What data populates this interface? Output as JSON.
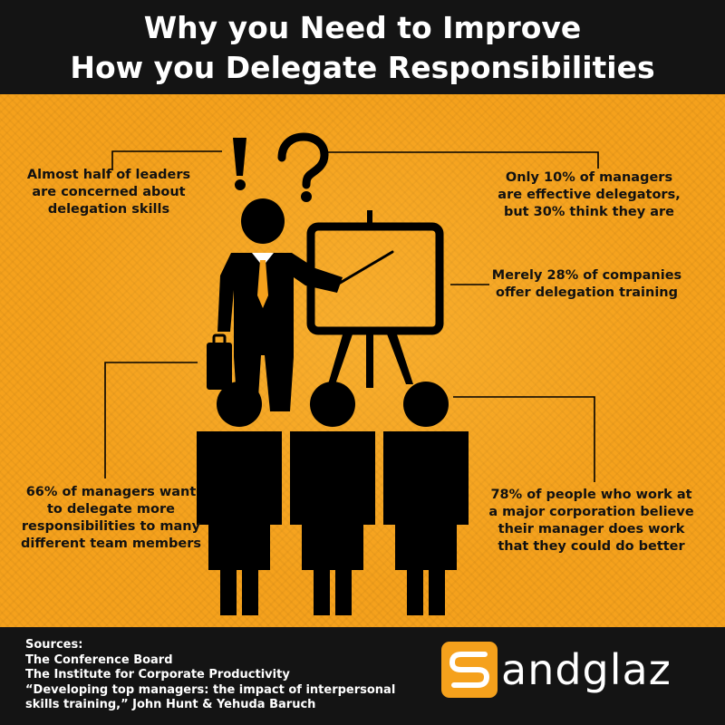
{
  "header": {
    "title_line1": "Why you Need to Improve",
    "title_line2": "How you Delegate Responsibilities"
  },
  "stats": {
    "concerned": [
      "Almost half of leaders",
      "are concerned about",
      "delegation skills"
    ],
    "effective": [
      "Only 10% of managers",
      "are effective delegators,",
      "but 30% think they are"
    ],
    "training": [
      "Merely 28% of companies",
      "offer delegation training"
    ],
    "want_delegate": [
      "66% of managers want",
      "to delegate more",
      "responsibilities to many",
      "different team members"
    ],
    "do_better": [
      "78% of people who work at",
      "a major corporation believe",
      "their manager does work",
      "that they could do better"
    ]
  },
  "sources": {
    "label": "Sources:",
    "items": [
      "The Conference Board",
      "The Institute for Corporate Productivity",
      "“Developing top managers: the impact of interpersonal",
      "skills training,” John Hunt & Yehuda Baruch"
    ]
  },
  "logo": {
    "text": "andglaz"
  },
  "icons": {
    "exclamation": "exclamation-icon",
    "question": "question-icon",
    "presenter": "presenter-icon",
    "easel": "easel-icon",
    "audience": "audience-person-icon"
  },
  "colors": {
    "background": "#f5a11c",
    "bars": "#141414",
    "figure": "#000000",
    "text": "#111111"
  }
}
